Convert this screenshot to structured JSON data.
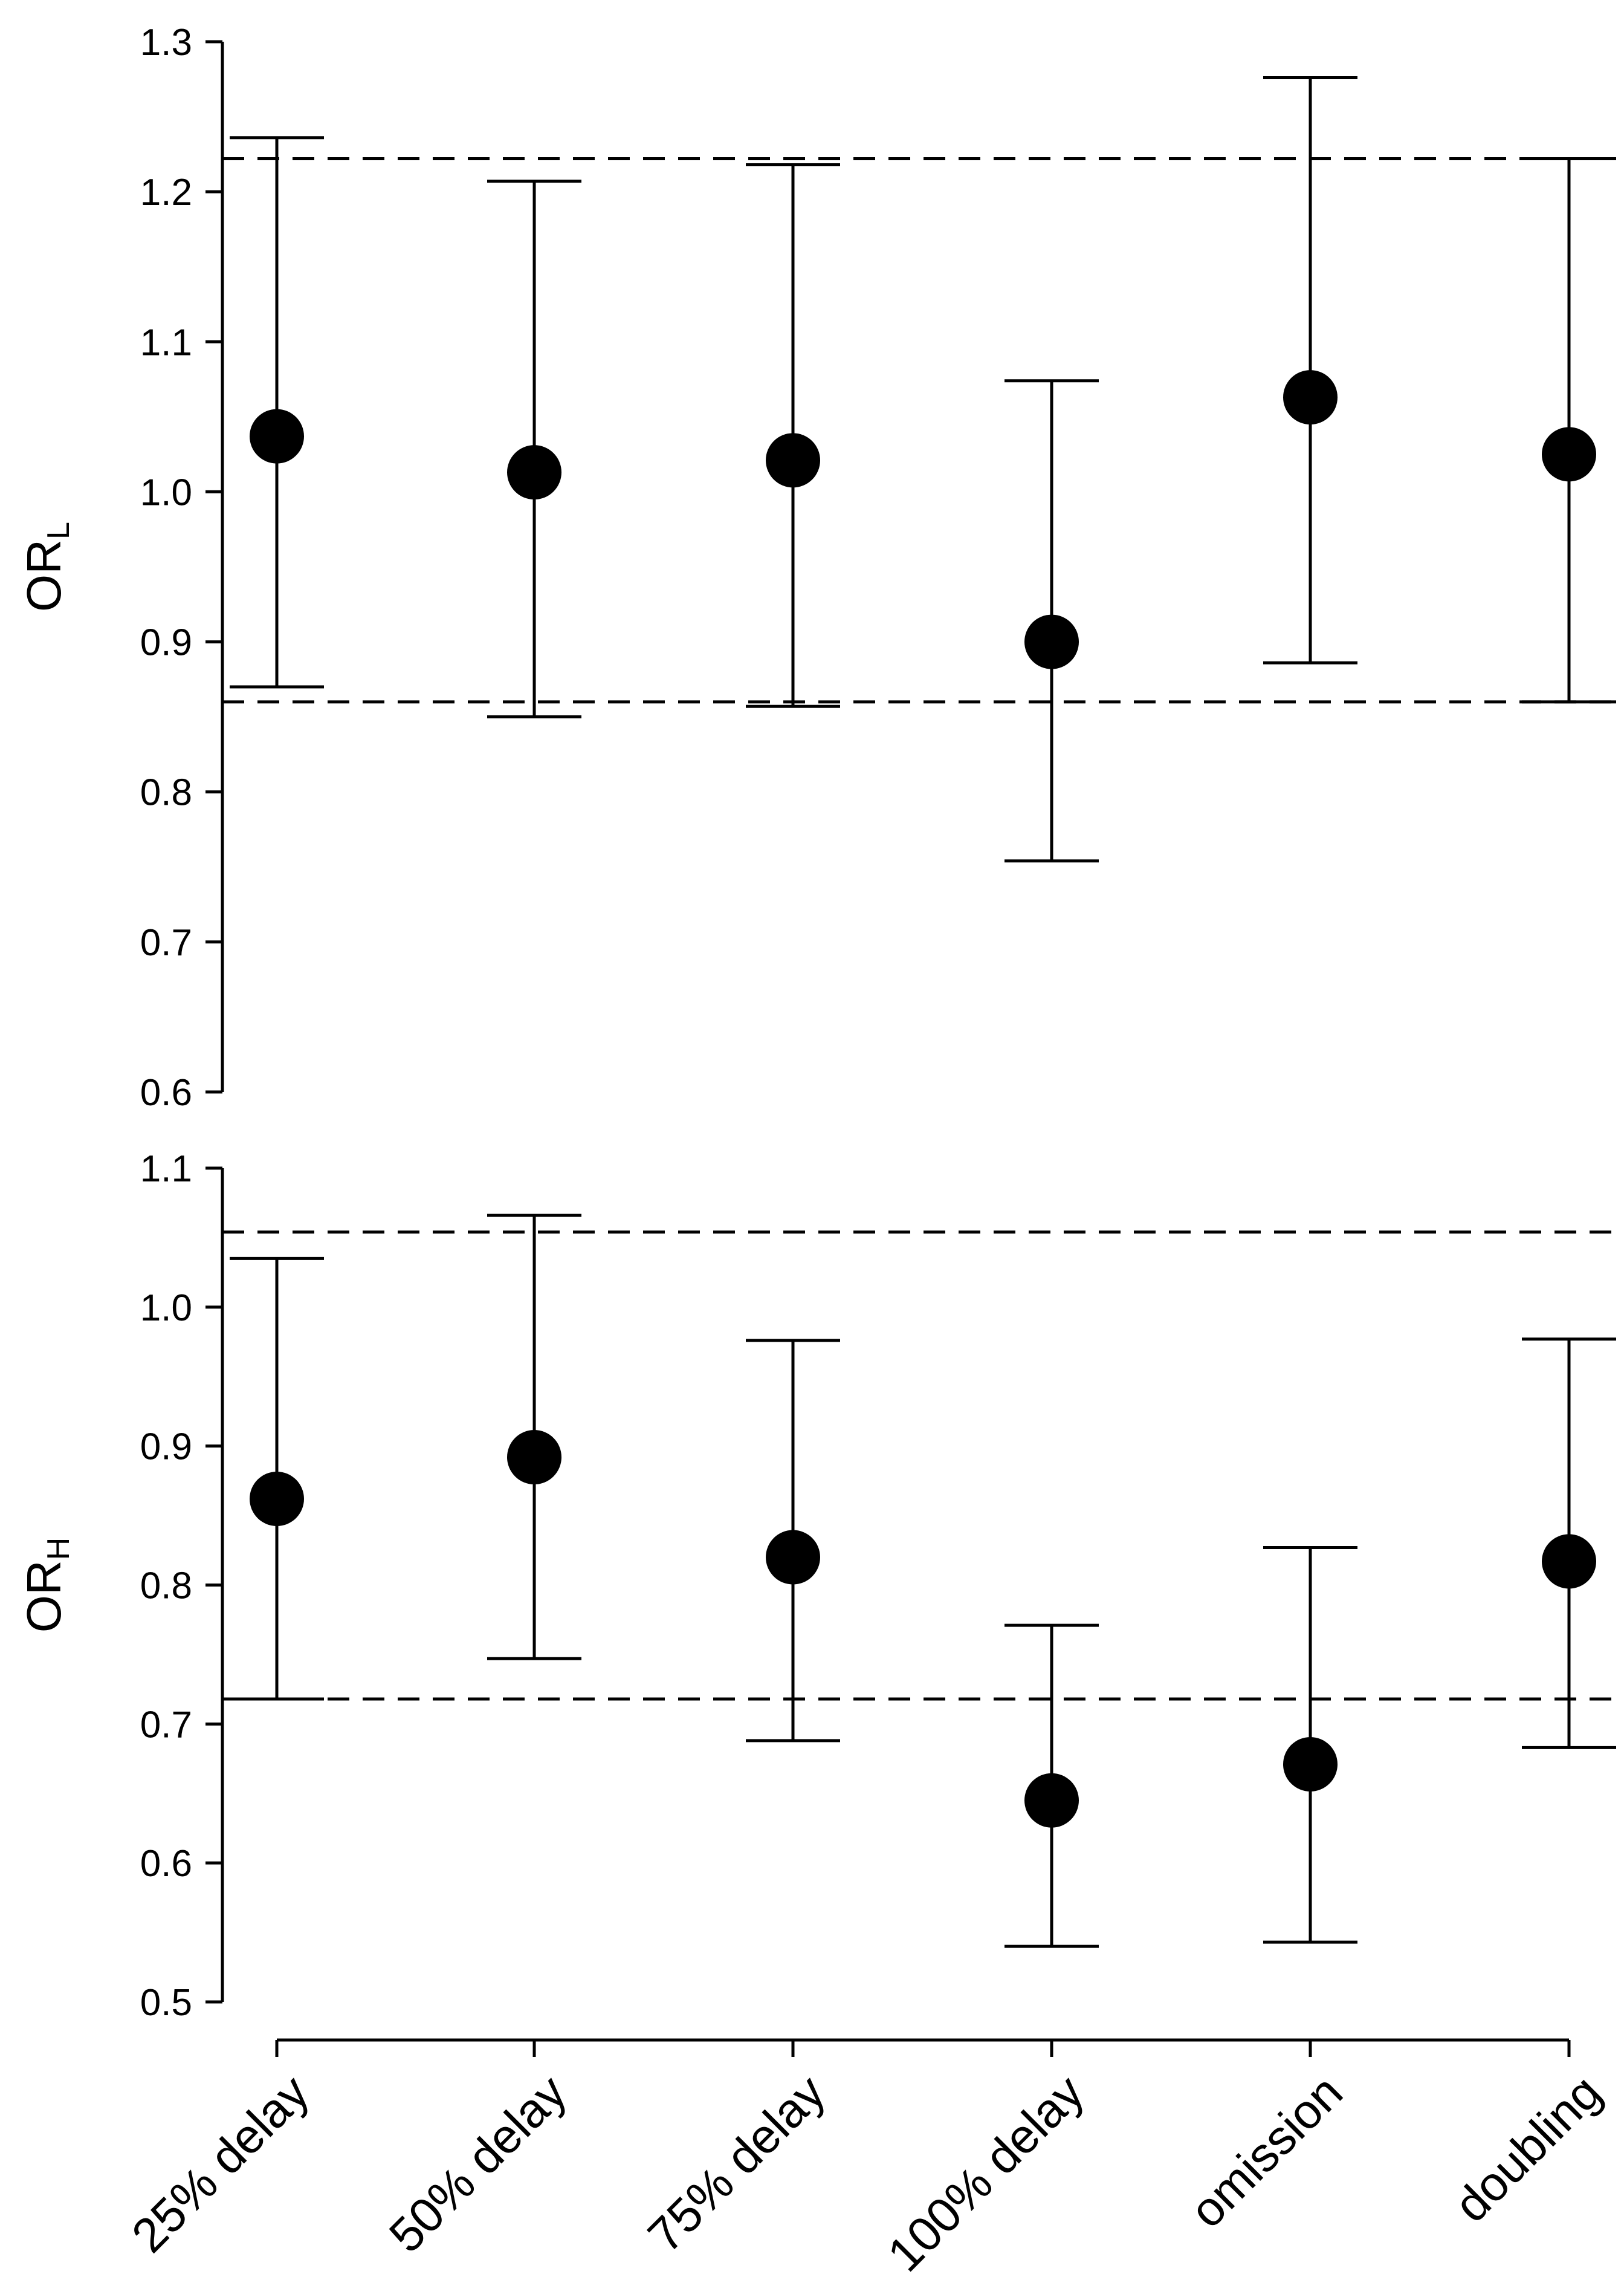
{
  "chart_data": [
    {
      "type": "scatter",
      "ylabel": {
        "main": "OR",
        "sub": "L"
      },
      "ylim": [
        0.6,
        1.3
      ],
      "yticks": [
        "0.6",
        "0.7",
        "0.8",
        "0.9",
        "1.0",
        "1.1",
        "1.2",
        "1.3"
      ],
      "categories": [
        "25% delay",
        "50% delay",
        "75% delay",
        "100% delay",
        "omission",
        "doubling"
      ],
      "values": [
        1.037,
        1.013,
        1.021,
        0.9,
        1.063,
        1.025
      ],
      "ci_lower": [
        0.87,
        0.85,
        0.857,
        0.754,
        0.886,
        0.86
      ],
      "ci_upper": [
        1.236,
        1.207,
        1.218,
        1.074,
        1.276,
        1.222
      ],
      "reference_lines": [
        0.86,
        1.222
      ],
      "reference_line_style": "dashed",
      "grid": false,
      "legend": "none"
    },
    {
      "type": "scatter",
      "ylabel": {
        "main": "OR",
        "sub": "H"
      },
      "ylim": [
        0.5,
        1.1
      ],
      "yticks": [
        "0.5",
        "0.6",
        "0.7",
        "0.8",
        "0.9",
        "1.0",
        "1.1"
      ],
      "categories": [
        "25% delay",
        "50% delay",
        "75% delay",
        "100% delay",
        "omission",
        "doubling"
      ],
      "values": [
        0.862,
        0.892,
        0.82,
        0.645,
        0.671,
        0.817
      ],
      "ci_lower": [
        0.718,
        0.747,
        0.688,
        0.54,
        0.543,
        0.683
      ],
      "ci_upper": [
        1.035,
        1.066,
        0.976,
        0.771,
        0.827,
        0.977
      ],
      "reference_lines": [
        0.718,
        1.054
      ],
      "reference_line_style": "dashed",
      "grid": false,
      "legend": "none"
    }
  ]
}
